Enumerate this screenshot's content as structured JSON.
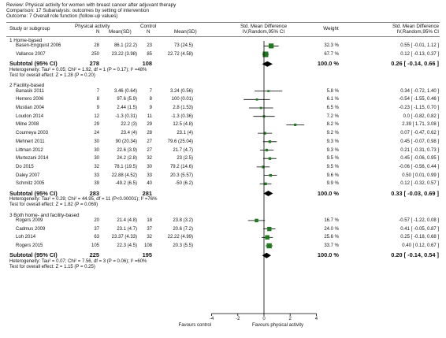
{
  "header": {
    "review": "Review:  Physical activity for women with breast cancer after adjuvant therapy",
    "comparison": "Comparison:  17 Subanalysis: outcomes by setting of intervention",
    "outcome": "Outcome:  7 Overall role function (follow-up values)"
  },
  "columns": {
    "study": "Study or subgroup",
    "pa_group": "Physical activity",
    "ctrl_group": "Control",
    "n": "N",
    "mean_sd": "Mean(SD)",
    "smd": "Std. Mean Difference",
    "smd_sub": "IV,Random,95% CI",
    "weight": "Weight",
    "smd_r": "Std. Mean Difference",
    "smd_r_sub": "IV,Random,95% CI"
  },
  "subgroups": [
    {
      "name": "1 Home-based",
      "studies": [
        {
          "study": "Basen-Engquist 2006",
          "n1": "28",
          "m1": "86.1 (22.2)",
          "n2": "23",
          "m2": "73 (24.5)",
          "weight": "32.3 %",
          "ci": "0.55 [ -0.01, 1.12 ]",
          "est": 0.55,
          "lo": -0.01,
          "hi": 1.12,
          "w": 32.3
        },
        {
          "study": "Vallance 2007",
          "n1": "250",
          "m1": "23.22 (3.98)",
          "n2": "85",
          "m2": "22.72 (4.58)",
          "weight": "67.7 %",
          "ci": "0.12 [ -0.13, 0.37 ]",
          "est": 0.12,
          "lo": -0.13,
          "hi": 0.37,
          "w": 67.7
        }
      ],
      "subtotal": {
        "label": "Subtotal (95% CI)",
        "n1": "278",
        "n2": "108",
        "weight": "100.0 %",
        "ci": "0.26 [ -0.14, 0.66 ]",
        "est": 0.26,
        "lo": -0.14,
        "hi": 0.66
      },
      "het": "Heterogeneity: Tau² = 0.05; Chi² = 1.92, df = 1 (P = 0.17); I² =48%",
      "effect": "Test for overall effect: Z = 1.28 (P = 0.20)"
    },
    {
      "name": "2 Facility-based",
      "studies": [
        {
          "study": "Banasik 2011",
          "n1": "7",
          "m1": "3.46 (0.64)",
          "n2": "7",
          "m2": "3.24 (0.56)",
          "weight": "5.8 %",
          "ci": "0.34 [ -0.72, 1.40 ]",
          "est": 0.34,
          "lo": -0.72,
          "hi": 1.4,
          "w": 5.8
        },
        {
          "study": "Herrero 2006",
          "n1": "8",
          "m1": "97.6 (5.9)",
          "n2": "8",
          "m2": "100 (0.01)",
          "weight": "6.1 %",
          "ci": "-0.54 [ -1.55, 0.46 ]",
          "est": -0.54,
          "lo": -1.55,
          "hi": 0.46,
          "w": 6.1
        },
        {
          "study": "Mustian 2004",
          "n1": "9",
          "m1": "2.44 (1.5)",
          "n2": "9",
          "m2": "2.8 (1.53)",
          "weight": "6.5 %",
          "ci": "-0.23 [ -1.15, 0.70 ]",
          "est": -0.23,
          "lo": -1.15,
          "hi": 0.7,
          "w": 6.5
        },
        {
          "study": "Loudon 2014",
          "n1": "12",
          "m1": "-1.3 (0.31)",
          "n2": "11",
          "m2": "-1.3 (0.36)",
          "weight": "7.2 %",
          "ci": "0.0 [ -0.82, 0.82 ]",
          "est": 0.0,
          "lo": -0.82,
          "hi": 0.82,
          "w": 7.2
        },
        {
          "study": "Milne 2008",
          "n1": "29",
          "m1": "22.2 (3)",
          "n2": "29",
          "m2": "12.5 (4.8)",
          "weight": "8.2 %",
          "ci": "2.39 [ 1.71, 3.08 ]",
          "est": 2.39,
          "lo": 1.71,
          "hi": 3.08,
          "w": 8.2
        },
        {
          "study": "Courneya 2003",
          "n1": "24",
          "m1": "23.4 (4)",
          "n2": "28",
          "m2": "23.1 (4)",
          "weight": "9.2 %",
          "ci": "0.07 [ -0.47, 0.62 ]",
          "est": 0.07,
          "lo": -0.47,
          "hi": 0.62,
          "w": 9.2
        },
        {
          "study": "Mehnert 2011",
          "n1": "30",
          "m1": "90 (20.34)",
          "n2": "27",
          "m2": "79.6 (25.04)",
          "weight": "9.3 %",
          "ci": "0.45 [ -0.07, 0.98 ]",
          "est": 0.45,
          "lo": -0.07,
          "hi": 0.98,
          "w": 9.3
        },
        {
          "study": "Littman 2012",
          "n1": "30",
          "m1": "22.6 (3.9)",
          "n2": "27",
          "m2": "21.7 (4.7)",
          "weight": "9.3 %",
          "ci": "0.21 [ -0.31, 0.73 ]",
          "est": 0.21,
          "lo": -0.31,
          "hi": 0.73,
          "w": 9.3
        },
        {
          "study": "Murtezani 2014",
          "n1": "30",
          "m1": "24.2 (2.8)",
          "n2": "32",
          "m2": "23 (2.5)",
          "weight": "9.5 %",
          "ci": "0.45 [ -0.06, 0.95 ]",
          "est": 0.45,
          "lo": -0.06,
          "hi": 0.95,
          "w": 9.5
        },
        {
          "study": "Do 2015",
          "n1": "32",
          "m1": "78.1 (19.5)",
          "n2": "30",
          "m2": "79.2 (14.6)",
          "weight": "9.5 %",
          "ci": "-0.06 [ -0.56, 0.44 ]",
          "est": -0.06,
          "lo": -0.56,
          "hi": 0.44,
          "w": 9.5
        },
        {
          "study": "Daley 2007",
          "n1": "33",
          "m1": "22.88 (4.52)",
          "n2": "33",
          "m2": "20.3 (5.57)",
          "weight": "9.6 %",
          "ci": "0.50 [ 0.01, 0.99 ]",
          "est": 0.5,
          "lo": 0.01,
          "hi": 0.99,
          "w": 9.6
        },
        {
          "study": "Schmitz 2005",
          "n1": "39",
          "m1": "-49.2 (6.5)",
          "n2": "40",
          "m2": "-50 (6.2)",
          "weight": "9.9 %",
          "ci": "0.12 [ -0.32, 0.57 ]",
          "est": 0.12,
          "lo": -0.32,
          "hi": 0.57,
          "w": 9.9
        }
      ],
      "subtotal": {
        "label": "Subtotal (95% CI)",
        "n1": "283",
        "n2": "281",
        "weight": "100.0 %",
        "ci": "0.33 [ -0.03, 0.69 ]",
        "est": 0.33,
        "lo": -0.03,
        "hi": 0.69
      },
      "het": "Heterogeneity: Tau² = 0.29; Chi² = 44.95, df = 11 (P<0.00001); I² =76%",
      "effect": "Test for overall effect: Z = 1.82 (P = 0.069)"
    },
    {
      "name": "3 Both home- and facility-based",
      "studies": [
        {
          "study": "Rogers 2009",
          "n1": "20",
          "m1": "21.4 (4.8)",
          "n2": "18",
          "m2": "23.8 (3.2)",
          "weight": "16.7 %",
          "ci": "-0.57 [ -1.22, 0.08 ]",
          "est": -0.57,
          "lo": -1.22,
          "hi": 0.08,
          "w": 16.7
        },
        {
          "study": "Cadmus 2009",
          "n1": "37",
          "m1": "23.1 (4.7)",
          "n2": "37",
          "m2": "20.6 (7.2)",
          "weight": "24.0 %",
          "ci": "0.41 [ -0.05, 0.87 ]",
          "est": 0.41,
          "lo": -0.05,
          "hi": 0.87,
          "w": 24.0
        },
        {
          "study": "Loh 2014",
          "n1": "63",
          "m1": "23.37 (4.33)",
          "n2": "32",
          "m2": "22.22 (4.99)",
          "weight": "25.6 %",
          "ci": "0.25 [ -0.18, 0.68 ]",
          "est": 0.25,
          "lo": -0.18,
          "hi": 0.68,
          "w": 25.6
        },
        {
          "study": "Rogers 2015",
          "n1": "105",
          "m1": "22.3 (4.5)",
          "n2": "108",
          "m2": "20.3 (5.5)",
          "weight": "33.7 %",
          "ci": "0.40 [ 0.12, 0.67 ]",
          "est": 0.4,
          "lo": 0.12,
          "hi": 0.67,
          "w": 33.7
        }
      ],
      "subtotal": {
        "label": "Subtotal (95% CI)",
        "n1": "225",
        "n2": "195",
        "weight": "100.0 %",
        "ci": "0.20 [ -0.14, 0.54 ]",
        "est": 0.2,
        "lo": -0.14,
        "hi": 0.54
      },
      "het": "Heterogeneity: Tau² = 0.07; Chi² = 7.56, df = 3 (P = 0.06); I² =60%",
      "effect": "Test for overall effect: Z = 1.15 (P = 0.25)"
    }
  ],
  "axis": {
    "ticks": [
      -4,
      -2,
      0,
      2,
      4
    ],
    "tick_labels": [
      "-4",
      "-2",
      "0",
      "2",
      "4"
    ],
    "favours_left": "Favours control",
    "favours_right": "Favours physical activity"
  },
  "colors": {
    "study_square": "#1f7a1f",
    "diamond": "#000000",
    "ci_line": "#000000"
  },
  "chart_data": {
    "type": "forest",
    "x_range": [
      -4,
      4
    ],
    "null_line": 0,
    "rows": [
      {
        "subgroup": "1 Home-based",
        "study": "Basen-Engquist 2006",
        "smd": 0.55,
        "ci": [
          -0.01,
          1.12
        ],
        "weight": 32.3
      },
      {
        "subgroup": "1 Home-based",
        "study": "Vallance 2007",
        "smd": 0.12,
        "ci": [
          -0.13,
          0.37
        ],
        "weight": 67.7
      },
      {
        "subgroup": "1 Home-based",
        "study": "Subtotal (95% CI)",
        "smd": 0.26,
        "ci": [
          -0.14,
          0.66
        ],
        "weight": 100.0
      },
      {
        "subgroup": "2 Facility-based",
        "study": "Banasik 2011",
        "smd": 0.34,
        "ci": [
          -0.72,
          1.4
        ],
        "weight": 5.8
      },
      {
        "subgroup": "2 Facility-based",
        "study": "Herrero 2006",
        "smd": -0.54,
        "ci": [
          -1.55,
          0.46
        ],
        "weight": 6.1
      },
      {
        "subgroup": "2 Facility-based",
        "study": "Mustian 2004",
        "smd": -0.23,
        "ci": [
          -1.15,
          0.7
        ],
        "weight": 6.5
      },
      {
        "subgroup": "2 Facility-based",
        "study": "Loudon 2014",
        "smd": 0.0,
        "ci": [
          -0.82,
          0.82
        ],
        "weight": 7.2
      },
      {
        "subgroup": "2 Facility-based",
        "study": "Milne 2008",
        "smd": 2.39,
        "ci": [
          1.71,
          3.08
        ],
        "weight": 8.2
      },
      {
        "subgroup": "2 Facility-based",
        "study": "Courneya 2003",
        "smd": 0.07,
        "ci": [
          -0.47,
          0.62
        ],
        "weight": 9.2
      },
      {
        "subgroup": "2 Facility-based",
        "study": "Mehnert 2011",
        "smd": 0.45,
        "ci": [
          -0.07,
          0.98
        ],
        "weight": 9.3
      },
      {
        "subgroup": "2 Facility-based",
        "study": "Littman 2012",
        "smd": 0.21,
        "ci": [
          -0.31,
          0.73
        ],
        "weight": 9.3
      },
      {
        "subgroup": "2 Facility-based",
        "study": "Murtezani 2014",
        "smd": 0.45,
        "ci": [
          -0.06,
          0.95
        ],
        "weight": 9.5
      },
      {
        "subgroup": "2 Facility-based",
        "study": "Do 2015",
        "smd": -0.06,
        "ci": [
          -0.56,
          0.44
        ],
        "weight": 9.5
      },
      {
        "subgroup": "2 Facility-based",
        "study": "Daley 2007",
        "smd": 0.5,
        "ci": [
          0.01,
          0.99
        ],
        "weight": 9.6
      },
      {
        "subgroup": "2 Facility-based",
        "study": "Schmitz 2005",
        "smd": 0.12,
        "ci": [
          -0.32,
          0.57
        ],
        "weight": 9.9
      },
      {
        "subgroup": "2 Facility-based",
        "study": "Subtotal (95% CI)",
        "smd": 0.33,
        "ci": [
          -0.03,
          0.69
        ],
        "weight": 100.0
      },
      {
        "subgroup": "3 Both home- and facility-based",
        "study": "Rogers 2009",
        "smd": -0.57,
        "ci": [
          -1.22,
          0.08
        ],
        "weight": 16.7
      },
      {
        "subgroup": "3 Both home- and facility-based",
        "study": "Cadmus 2009",
        "smd": 0.41,
        "ci": [
          -0.05,
          0.87
        ],
        "weight": 24.0
      },
      {
        "subgroup": "3 Both home- and facility-based",
        "study": "Loh 2014",
        "smd": 0.25,
        "ci": [
          -0.18,
          0.68
        ],
        "weight": 25.6
      },
      {
        "subgroup": "3 Both home- and facility-based",
        "study": "Rogers 2015",
        "smd": 0.4,
        "ci": [
          0.12,
          0.67
        ],
        "weight": 33.7
      },
      {
        "subgroup": "3 Both home- and facility-based",
        "study": "Subtotal (95% CI)",
        "smd": 0.2,
        "ci": [
          -0.14,
          0.54
        ],
        "weight": 100.0
      }
    ]
  }
}
